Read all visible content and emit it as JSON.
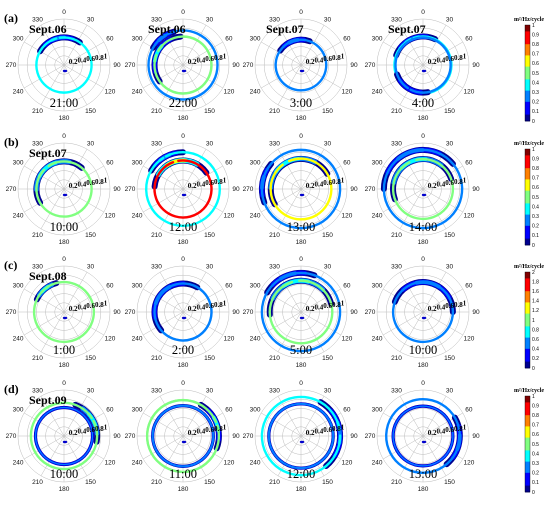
{
  "colormap": [
    "#00008f",
    "#0000ff",
    "#0080ff",
    "#00ffff",
    "#80ff80",
    "#ffff00",
    "#ff8000",
    "#ff0000",
    "#800000"
  ],
  "chart_data": {
    "type": "polar-contour",
    "angle_ticks": [
      "0",
      "30",
      "60",
      "90",
      "120",
      "150",
      "180",
      "210",
      "240",
      "270",
      "300",
      "330"
    ],
    "radial_ticks": [
      "0.2",
      "0.4",
      "0.6",
      "0.8",
      "1"
    ],
    "rows": [
      {
        "label": "(a)",
        "colorbar": {
          "title": "m²/Hz/cycle",
          "ticks": [
            "1",
            "0.9",
            "0.8",
            "0.7",
            "0.6",
            "0.5",
            "0.4",
            "0.3",
            "0.2",
            "0.1",
            "0"
          ]
        },
        "panels": [
          {
            "date": "Sept.06",
            "time": "21:00",
            "lobes": [
              {
                "a1": 300,
                "a2": 35,
                "r": 0.6,
                "peak": 0.35
              }
            ]
          },
          {
            "date": "Sept.06",
            "time": "22:00",
            "lobes": [
              {
                "a1": 235,
                "a2": 355,
                "r": 0.62,
                "peak": 0.45
              },
              {
                "a1": 300,
                "a2": 345,
                "r": 0.75,
                "peak": 0.3
              }
            ]
          },
          {
            "date": "Sept.07",
            "time": "3:00",
            "lobes": [
              {
                "a1": 305,
                "a2": 20,
                "r": 0.55,
                "peak": 0.3
              }
            ]
          },
          {
            "date": "Sept.07",
            "time": "4:00",
            "lobes": [
              {
                "a1": 290,
                "a2": 25,
                "r": 0.62,
                "peak": 0.35
              },
              {
                "a1": 170,
                "a2": 250,
                "r": 0.6,
                "peak": 0.2
              }
            ]
          }
        ]
      },
      {
        "label": "(b)",
        "colorbar": {
          "title": "m²/Hz/cycle",
          "ticks": [
            "1",
            "0.9",
            "0.8",
            "0.7",
            "0.6",
            "0.5",
            "0.4",
            "0.3",
            "0.2",
            "0.1",
            "0"
          ]
        },
        "panels": [
          {
            "date": "Sept.07",
            "time": "10:00",
            "lobes": [
              {
                "a1": 240,
                "a2": 40,
                "r": 0.6,
                "peak": 0.55
              }
            ]
          },
          {
            "date": "",
            "time": "12:00",
            "lobes": [
              {
                "a1": 275,
                "a2": 55,
                "r": 0.62,
                "peak": 0.9
              },
              {
                "a1": 300,
                "a2": 360,
                "r": 0.8,
                "peak": 0.4
              }
            ]
          },
          {
            "date": "",
            "time": "13:00",
            "lobes": [
              {
                "a1": 240,
                "a2": 60,
                "r": 0.66,
                "peak": 0.6
              },
              {
                "a1": 250,
                "a2": 310,
                "r": 0.85,
                "peak": 0.3
              }
            ]
          },
          {
            "date": "",
            "time": "14:00",
            "lobes": [
              {
                "a1": 250,
                "a2": 70,
                "r": 0.65,
                "peak": 0.55
              },
              {
                "a1": 270,
                "a2": 50,
                "r": 0.85,
                "peak": 0.3
              }
            ]
          }
        ]
      },
      {
        "label": "(c)",
        "colorbar": {
          "title": "m²/Hz/cycle",
          "ticks": [
            "2",
            "1.8",
            "1.6",
            "1.4",
            "1.2",
            "1",
            "0.8",
            "0.6",
            "0.4",
            "0.2",
            "0"
          ]
        },
        "panels": [
          {
            "date": "Sept.08",
            "time": "1:00",
            "lobes": [
              {
                "a1": 295,
                "a2": 345,
                "r": 0.65,
                "peak": 0.5
              }
            ]
          },
          {
            "date": "",
            "time": "2:00",
            "lobes": [
              {
                "a1": 230,
                "a2": 30,
                "r": 0.62,
                "peak": 0.3
              }
            ]
          },
          {
            "date": "",
            "time": "5:00",
            "lobes": [
              {
                "a1": 265,
                "a2": 75,
                "r": 0.68,
                "peak": 0.55
              },
              {
                "a1": 300,
                "a2": 20,
                "r": 0.85,
                "peak": 0.3
              }
            ]
          },
          {
            "date": "",
            "time": "10:00",
            "lobes": [
              {
                "a1": 290,
                "a2": 90,
                "r": 0.65,
                "peak": 0.3
              }
            ]
          }
        ]
      },
      {
        "label": "(d)",
        "colorbar": {
          "title": "m²/Hz/cycle",
          "ticks": [
            "1",
            "0.9",
            "0.8",
            "0.7",
            "0.6",
            "0.5",
            "0.4",
            "0.3",
            "0.2",
            "0.1",
            "0"
          ]
        },
        "panels": [
          {
            "date": "Sept.09",
            "time": "10:00",
            "lobes": [
              {
                "a1": 0,
                "a2": 360,
                "r": 0.62,
                "peak": 0.25
              },
              {
                "a1": 20,
                "a2": 100,
                "r": 0.72,
                "peak": 0.55
              }
            ]
          },
          {
            "date": "",
            "time": "11:00",
            "lobes": [
              {
                "a1": 0,
                "a2": 360,
                "r": 0.66,
                "peak": 0.3
              },
              {
                "a1": 30,
                "a2": 110,
                "r": 0.78,
                "peak": 0.45
              }
            ]
          },
          {
            "date": "",
            "time": "12:00",
            "lobes": [
              {
                "a1": 0,
                "a2": 360,
                "r": 0.7,
                "peak": 0.3
              },
              {
                "a1": 30,
                "a2": 140,
                "r": 0.85,
                "peak": 0.35
              }
            ]
          },
          {
            "date": "",
            "time": "13:00",
            "lobes": [
              {
                "a1": 0,
                "a2": 360,
                "r": 0.65,
                "peak": 0.25
              },
              {
                "a1": 60,
                "a2": 140,
                "r": 0.8,
                "peak": 0.3
              }
            ]
          }
        ]
      }
    ]
  }
}
